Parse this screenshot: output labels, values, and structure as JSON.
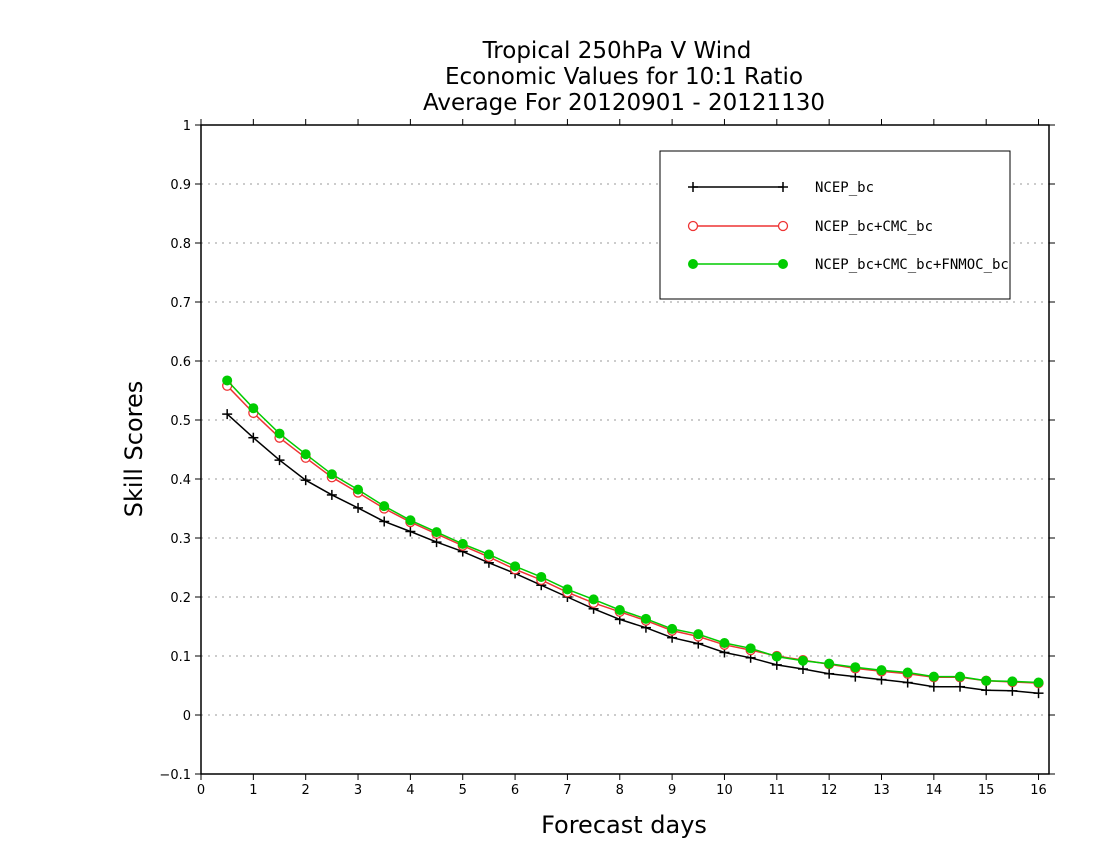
{
  "chart_data": {
    "type": "line",
    "title": [
      "Tropical 250hPa V Wind",
      "Economic Values for 10:1 Ratio",
      "Average For 20120901 - 20121130"
    ],
    "xlabel": "Forecast days",
    "ylabel": "Skill Scores",
    "xlim": [
      0,
      16.2
    ],
    "ylim": [
      -0.1,
      1
    ],
    "xticks": [
      "0",
      "1",
      "2",
      "3",
      "4",
      "5",
      "6",
      "7",
      "8",
      "9",
      "10",
      "11",
      "12",
      "13",
      "14",
      "15",
      "16"
    ],
    "yticks": [
      "−0.1",
      "0",
      "0.1",
      "0.2",
      "0.3",
      "0.4",
      "0.5",
      "0.6",
      "0.7",
      "0.8",
      "0.9",
      "1"
    ],
    "grid": "dotted horizontal",
    "legend_position": "top-right",
    "x": [
      0.5,
      1,
      1.5,
      2,
      2.5,
      3,
      3.5,
      4,
      4.5,
      5,
      5.5,
      6,
      6.5,
      7,
      7.5,
      8,
      8.5,
      9,
      9.5,
      10,
      10.5,
      11,
      11.5,
      12,
      12.5,
      13,
      13.5,
      14,
      14.5,
      15,
      15.5,
      16
    ],
    "series": [
      {
        "name": "NCEP_bc",
        "color": "#000000",
        "marker": "plus",
        "values": [
          0.51,
          0.47,
          0.432,
          0.398,
          0.373,
          0.351,
          0.328,
          0.311,
          0.293,
          0.277,
          0.258,
          0.24,
          0.22,
          0.2,
          0.18,
          0.162,
          0.148,
          0.131,
          0.121,
          0.106,
          0.097,
          0.085,
          0.078,
          0.07,
          0.065,
          0.06,
          0.055,
          0.048,
          0.048,
          0.042,
          0.041,
          0.037
        ]
      },
      {
        "name": "NCEP_bc+CMC_bc",
        "color": "#ee3333",
        "marker": "open-circle",
        "values": [
          0.558,
          0.512,
          0.47,
          0.436,
          0.403,
          0.377,
          0.35,
          0.327,
          0.307,
          0.287,
          0.268,
          0.247,
          0.229,
          0.208,
          0.19,
          0.175,
          0.16,
          0.143,
          0.133,
          0.119,
          0.11,
          0.1,
          0.093,
          0.086,
          0.079,
          0.074,
          0.07,
          0.064,
          0.064,
          0.058,
          0.056,
          0.054
        ]
      },
      {
        "name": "NCEP_bc+CMC_bc+FNMOC_bc",
        "color": "#00cc00",
        "marker": "filled-circle",
        "values": [
          0.567,
          0.52,
          0.477,
          0.442,
          0.408,
          0.382,
          0.354,
          0.33,
          0.31,
          0.29,
          0.272,
          0.252,
          0.234,
          0.213,
          0.196,
          0.178,
          0.163,
          0.146,
          0.137,
          0.122,
          0.113,
          0.099,
          0.092,
          0.087,
          0.081,
          0.076,
          0.072,
          0.065,
          0.065,
          0.058,
          0.057,
          0.055
        ]
      }
    ]
  }
}
